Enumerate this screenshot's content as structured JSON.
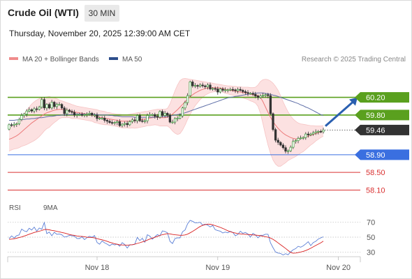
{
  "header": {
    "instrument": "Crude Oil (WTI)",
    "timeframe": "30 MIN",
    "datetime": "Thursday, November 20, 2025 12:39:00 AM CET"
  },
  "legend": {
    "ma20": {
      "label": "MA 20 + Bollinger Bands",
      "color": "#f08c8c"
    },
    "ma50": {
      "label": "MA 50",
      "color": "#2d4e8c"
    },
    "credit": "Research © 2025 Trading Central"
  },
  "rsi_legend": {
    "rsi": {
      "label": "RSI",
      "color": "#5b7fd6"
    },
    "ma9": {
      "label": "9MA",
      "color": "#d92020"
    }
  },
  "chart_data": {
    "type": "line",
    "series_type": "candlestick",
    "y_range": [
      57.95,
      60.62
    ],
    "x_ticks": [
      {
        "label": "Nov 18",
        "index": 35
      },
      {
        "label": "Nov 19",
        "index": 83
      },
      {
        "label": "Nov 20",
        "index": 131
      }
    ],
    "close": [
      59.58,
      59.57,
      59.59,
      59.6,
      59.7,
      59.79,
      59.82,
      59.89,
      59.92,
      59.89,
      59.94,
      59.93,
      59.98,
      60.15,
      59.96,
      60.04,
      59.96,
      60.09,
      59.99,
      60.04,
      60.04,
      59.96,
      59.83,
      59.91,
      59.88,
      59.86,
      59.8,
      59.81,
      59.81,
      59.8,
      59.81,
      59.82,
      59.84,
      59.8,
      59.8,
      59.72,
      59.73,
      59.73,
      59.68,
      59.66,
      59.63,
      59.62,
      59.63,
      59.65,
      59.56,
      59.59,
      59.61,
      59.58,
      59.65,
      59.69,
      59.67,
      59.79,
      59.67,
      59.66,
      59.67,
      59.79,
      59.81,
      59.81,
      59.77,
      59.75,
      59.88,
      59.79,
      59.84,
      59.8,
      59.64,
      59.64,
      59.72,
      59.73,
      59.78,
      59.96,
      60.08,
      60.24,
      60.55,
      60.46,
      60.47,
      60.45,
      60.48,
      60.46,
      60.44,
      60.48,
      60.39,
      60.4,
      60.39,
      60.32,
      60.39,
      60.36,
      60.37,
      60.37,
      60.38,
      60.37,
      60.35,
      60.38,
      60.36,
      60.33,
      60.31,
      60.29,
      60.29,
      60.27,
      60.23,
      60.2,
      60.23,
      60.25,
      60.26,
      60.24,
      59.83,
      59.47,
      59.23,
      59.18,
      59.12,
      59.06,
      58.98,
      58.99,
      59.07,
      59.2,
      59.22,
      59.27,
      59.28,
      59.29,
      59.37,
      59.35,
      59.37,
      59.4,
      59.42,
      59.43,
      59.42,
      59.46
    ],
    "open": [
      59.48,
      59.58,
      59.57,
      59.59,
      59.6,
      59.7,
      59.79,
      59.82,
      59.89,
      59.92,
      59.89,
      59.94,
      59.93,
      59.98,
      60.15,
      59.96,
      60.04,
      59.96,
      60.09,
      59.99,
      60.04,
      60.04,
      59.96,
      59.83,
      59.91,
      59.88,
      59.86,
      59.8,
      59.81,
      59.81,
      59.8,
      59.81,
      59.82,
      59.84,
      59.8,
      59.8,
      59.72,
      59.73,
      59.73,
      59.68,
      59.66,
      59.63,
      59.62,
      59.63,
      59.65,
      59.56,
      59.59,
      59.61,
      59.58,
      59.65,
      59.69,
      59.67,
      59.79,
      59.67,
      59.66,
      59.67,
      59.79,
      59.81,
      59.81,
      59.77,
      59.75,
      59.88,
      59.79,
      59.84,
      59.8,
      59.64,
      59.64,
      59.72,
      59.73,
      59.78,
      59.96,
      60.08,
      60.24,
      60.55,
      60.46,
      60.47,
      60.45,
      60.48,
      60.46,
      60.44,
      60.48,
      60.39,
      60.4,
      60.39,
      60.32,
      60.39,
      60.36,
      60.37,
      60.37,
      60.38,
      60.37,
      60.35,
      60.38,
      60.36,
      60.33,
      60.31,
      60.29,
      60.29,
      60.27,
      60.23,
      60.2,
      60.23,
      60.25,
      60.26,
      60.24,
      59.83,
      59.47,
      59.23,
      59.18,
      59.12,
      59.06,
      58.98,
      58.99,
      59.07,
      59.2,
      59.22,
      59.27,
      59.28,
      59.29,
      59.37,
      59.35,
      59.37,
      59.4,
      59.42,
      59.43,
      59.42
    ],
    "ma20": [
      59.25,
      59.27,
      59.3,
      59.33,
      59.37,
      59.42,
      59.47,
      59.52,
      59.57,
      59.62,
      59.66,
      59.7,
      59.74,
      59.78,
      59.82,
      59.85,
      59.87,
      59.89,
      59.91,
      59.92,
      59.93,
      59.93,
      59.92,
      59.91,
      59.9,
      59.88,
      59.87,
      59.86,
      59.85,
      59.84,
      59.83,
      59.82,
      59.81,
      59.8,
      59.78,
      59.77,
      59.75,
      59.74,
      59.73,
      59.72,
      59.71,
      59.7,
      59.69,
      59.68,
      59.67,
      59.66,
      59.66,
      59.66,
      59.66,
      59.67,
      59.67,
      59.68,
      59.69,
      59.7,
      59.71,
      59.72,
      59.73,
      59.74,
      59.75,
      59.75,
      59.74,
      59.74,
      59.74,
      59.75,
      59.78,
      59.82,
      59.87,
      59.92,
      59.98,
      60.04,
      60.1,
      60.16,
      60.21,
      60.26,
      60.3,
      60.33,
      60.36,
      60.38,
      60.4,
      60.41,
      60.42,
      60.42,
      60.42,
      60.42,
      60.41,
      60.4,
      60.38,
      60.37,
      60.36,
      60.35,
      60.34,
      60.33,
      60.32,
      60.31,
      60.3,
      60.29,
      60.27,
      60.26,
      60.25,
      60.24,
      60.2,
      60.1,
      59.98,
      59.86,
      59.75,
      59.65,
      59.57,
      59.5,
      59.44,
      59.39,
      59.35,
      59.32,
      59.29,
      59.27,
      59.26,
      59.26,
      59.27,
      59.28,
      59.3,
      59.32,
      59.34,
      59.36,
      59.38,
      59.4,
      59.42,
      59.44
    ],
    "upper": [
      59.52,
      59.53,
      59.57,
      59.62,
      59.68,
      59.75,
      59.83,
      59.91,
      59.98,
      60.05,
      60.1,
      60.14,
      60.17,
      60.19,
      60.2,
      60.21,
      60.22,
      60.2,
      60.19,
      60.17,
      60.14,
      60.12,
      60.1,
      60.08,
      60.06,
      60.04,
      60.02,
      60.0,
      59.99,
      59.98,
      59.97,
      59.96,
      59.95,
      59.94,
      59.93,
      59.92,
      59.9,
      59.89,
      59.88,
      59.86,
      59.85,
      59.84,
      59.83,
      59.82,
      59.82,
      59.81,
      59.81,
      59.81,
      59.82,
      59.83,
      59.84,
      59.85,
      59.86,
      59.87,
      59.88,
      59.88,
      59.9,
      59.91,
      59.92,
      59.93,
      59.93,
      59.93,
      59.93,
      59.95,
      60.05,
      60.2,
      60.35,
      60.48,
      60.58,
      60.62,
      60.63,
      60.62,
      60.61,
      60.6,
      60.59,
      60.58,
      60.57,
      60.56,
      60.55,
      60.54,
      60.53,
      60.52,
      60.51,
      60.5,
      60.49,
      60.48,
      60.47,
      60.46,
      60.46,
      60.45,
      60.45,
      60.44,
      60.44,
      60.43,
      60.43,
      60.43,
      60.42,
      60.42,
      60.43,
      60.48,
      60.56,
      60.6,
      60.61,
      60.6,
      60.57,
      60.52,
      60.45,
      60.36,
      60.24,
      60.1,
      59.98,
      59.87,
      59.78,
      59.71,
      59.66,
      59.62,
      59.6,
      59.59,
      59.58,
      59.57,
      59.56,
      59.56,
      59.55,
      59.55,
      59.55,
      59.56
    ],
    "lower": [
      58.98,
      59.01,
      59.03,
      59.04,
      59.06,
      59.09,
      59.11,
      59.13,
      59.16,
      59.19,
      59.22,
      59.26,
      59.31,
      59.37,
      59.44,
      59.49,
      59.52,
      59.58,
      59.63,
      59.67,
      59.72,
      59.74,
      59.74,
      59.74,
      59.74,
      59.72,
      59.72,
      59.72,
      59.71,
      59.7,
      59.69,
      59.68,
      59.67,
      59.66,
      59.63,
      59.62,
      59.6,
      59.59,
      59.58,
      59.58,
      59.57,
      59.56,
      59.55,
      59.54,
      59.52,
      59.51,
      59.51,
      59.51,
      59.5,
      59.51,
      59.5,
      59.51,
      59.52,
      59.53,
      59.54,
      59.56,
      59.56,
      59.57,
      59.58,
      59.57,
      59.55,
      59.55,
      59.55,
      59.55,
      59.51,
      59.44,
      59.39,
      59.36,
      59.38,
      59.46,
      59.57,
      59.7,
      59.81,
      59.92,
      60.01,
      60.08,
      60.15,
      60.2,
      60.25,
      60.28,
      60.31,
      60.32,
      60.33,
      60.34,
      60.33,
      60.32,
      60.29,
      60.28,
      60.26,
      60.25,
      60.23,
      60.22,
      60.2,
      60.19,
      60.17,
      60.15,
      60.12,
      60.1,
      60.07,
      60.0,
      59.84,
      59.6,
      59.35,
      59.12,
      58.93,
      58.78,
      58.69,
      58.64,
      58.64,
      58.68,
      58.72,
      58.77,
      58.8,
      58.83,
      58.86,
      58.9,
      58.94,
      58.97,
      59.02,
      59.07,
      59.12,
      59.16,
      59.21,
      59.25,
      59.29,
      59.32
    ],
    "ma50": [
      59.68,
      59.68,
      59.68,
      59.69,
      59.69,
      59.7,
      59.7,
      59.71,
      59.71,
      59.72,
      59.72,
      59.73,
      59.74,
      59.74,
      59.75,
      59.76,
      59.77,
      59.77,
      59.78,
      59.79,
      59.79,
      59.8,
      59.8,
      59.81,
      59.81,
      59.81,
      59.81,
      59.82,
      59.82,
      59.82,
      59.82,
      59.81,
      59.81,
      59.81,
      59.81,
      59.81,
      59.8,
      59.8,
      59.8,
      59.8,
      59.79,
      59.79,
      59.78,
      59.78,
      59.77,
      59.76,
      59.76,
      59.76,
      59.76,
      59.76,
      59.75,
      59.75,
      59.75,
      59.75,
      59.75,
      59.75,
      59.75,
      59.75,
      59.75,
      59.76,
      59.76,
      59.76,
      59.77,
      59.77,
      59.78,
      59.79,
      59.8,
      59.81,
      59.82,
      59.83,
      59.85,
      59.87,
      59.89,
      59.91,
      59.93,
      59.95,
      59.97,
      59.99,
      60.01,
      60.03,
      60.05,
      60.07,
      60.09,
      60.11,
      60.13,
      60.15,
      60.17,
      60.19,
      60.2,
      60.21,
      60.22,
      60.23,
      60.24,
      60.25,
      60.26,
      60.27,
      60.28,
      60.29,
      60.29,
      60.3,
      60.3,
      60.3,
      60.29,
      60.28,
      60.27,
      60.25,
      60.24,
      60.22,
      60.2,
      60.18,
      60.16,
      60.14,
      60.12,
      60.1,
      60.08,
      60.06,
      60.03,
      60.01,
      59.98,
      59.96,
      59.93,
      59.9,
      59.87,
      59.84,
      59.81,
      59.79
    ],
    "levels": [
      {
        "value": 60.2,
        "label": "60.20",
        "color": "#5aa01e",
        "kind": "resistance"
      },
      {
        "value": 59.8,
        "label": "59.80",
        "color": "#5aa01e",
        "kind": "resistance"
      },
      {
        "value": 58.9,
        "label": "58.90",
        "color": "#3a6fe0",
        "kind": "pivot"
      },
      {
        "value": 58.5,
        "label": "58.50",
        "color": "#d93030",
        "kind": "support"
      },
      {
        "value": 58.1,
        "label": "58.10",
        "color": "#d93030",
        "kind": "support"
      }
    ],
    "last_price": {
      "value": 59.46,
      "label": "59.46",
      "color": "#333333"
    },
    "forecast_arrow": {
      "from": 59.55,
      "to": 60.2,
      "color": "#2a5fb0"
    },
    "rsi": {
      "y_range": [
        20,
        80
      ],
      "ticks": [
        {
          "value": 70,
          "label": "70"
        },
        {
          "value": 50,
          "label": "50"
        },
        {
          "value": 30,
          "label": "30"
        }
      ],
      "values": [
        48.0,
        51.7,
        49.0,
        52.0,
        53.0,
        60.9,
        58.4,
        57.3,
        62.0,
        59.6,
        63.5,
        58.1,
        62.3,
        60.6,
        69.6,
        54.8,
        56.8,
        51.9,
        56.6,
        53.8,
        54.2,
        53.1,
        50.1,
        50.8,
        52.5,
        51.8,
        51.3,
        48.2,
        48.1,
        50.6,
        46.7,
        49.3,
        51.2,
        49.8,
        52.2,
        42.9,
        40.5,
        44.8,
        42.4,
        40.6,
        38.5,
        40.6,
        39.5,
        40.7,
        37.8,
        42.6,
        40.1,
        35.4,
        39.9,
        39.7,
        40.5,
        49.7,
        45.4,
        48.4,
        43.2,
        53.3,
        51.4,
        47.2,
        50.5,
        53.5,
        51.8,
        58.4,
        57.6,
        55.8,
        44.4,
        41.5,
        48.1,
        49.1,
        49.0,
        57.2,
        59.7,
        67.8,
        72.6,
        71.3,
        69.3,
        69.4,
        70.0,
        66.2,
        67.5,
        66.1,
        63.7,
        65.7,
        60.0,
        58.8,
        58.1,
        55.6,
        56.8,
        55.8,
        57.9,
        56.4,
        52.0,
        53.7,
        58.0,
        55.2,
        56.4,
        54.2,
        50.0,
        55.1,
        52.9,
        49.1,
        52.5,
        52.5,
        53.9,
        53.8,
        42.3,
        35.8,
        30.0,
        28.6,
        28.1,
        26.1,
        27.8,
        26.4,
        30.2,
        33.0,
        34.6,
        37.7,
        36.5,
        38.3,
        40.9,
        43.9,
        38.7,
        42.8,
        44.4,
        47.5,
        49.1,
        50.5
      ],
      "ma9": [
        47.0,
        47.4,
        47.8,
        48.6,
        49.4,
        50.3,
        51.5,
        52.6,
        53.9,
        55.1,
        56.3,
        57.2,
        58.0,
        58.9,
        60.2,
        60.3,
        59.8,
        59.1,
        58.6,
        57.8,
        57.1,
        56.3,
        55.5,
        54.6,
        53.6,
        52.9,
        52.4,
        51.6,
        51.2,
        51.0,
        50.6,
        49.9,
        49.6,
        49.4,
        49.0,
        48.0,
        47.2,
        46.4,
        45.5,
        44.5,
        43.2,
        42.2,
        41.1,
        40.4,
        39.7,
        39.5,
        39.4,
        39.3,
        39.5,
        39.9,
        40.5,
        41.6,
        42.5,
        43.6,
        44.6,
        46.1,
        47.5,
        48.7,
        49.8,
        51.0,
        52.3,
        53.3,
        54.0,
        54.8,
        54.4,
        53.7,
        53.2,
        52.9,
        52.5,
        52.5,
        53.0,
        54.0,
        55.8,
        57.7,
        59.8,
        62.2,
        64.3,
        65.8,
        66.8,
        67.5,
        67.3,
        66.6,
        65.5,
        64.3,
        63.1,
        61.8,
        60.2,
        58.6,
        57.3,
        56.3,
        55.5,
        54.8,
        54.4,
        54.0,
        53.8,
        53.6,
        53.3,
        53.0,
        52.8,
        52.4,
        51.9,
        51.2,
        50.6,
        50.0,
        48.8,
        47.1,
        44.8,
        42.3,
        39.8,
        37.3,
        34.8,
        32.1,
        29.6,
        28.3,
        28.6,
        29.3,
        30.0,
        30.9,
        32.0,
        33.4,
        35.1,
        37.0,
        38.8,
        40.6,
        42.4,
        44.7
      ]
    }
  }
}
